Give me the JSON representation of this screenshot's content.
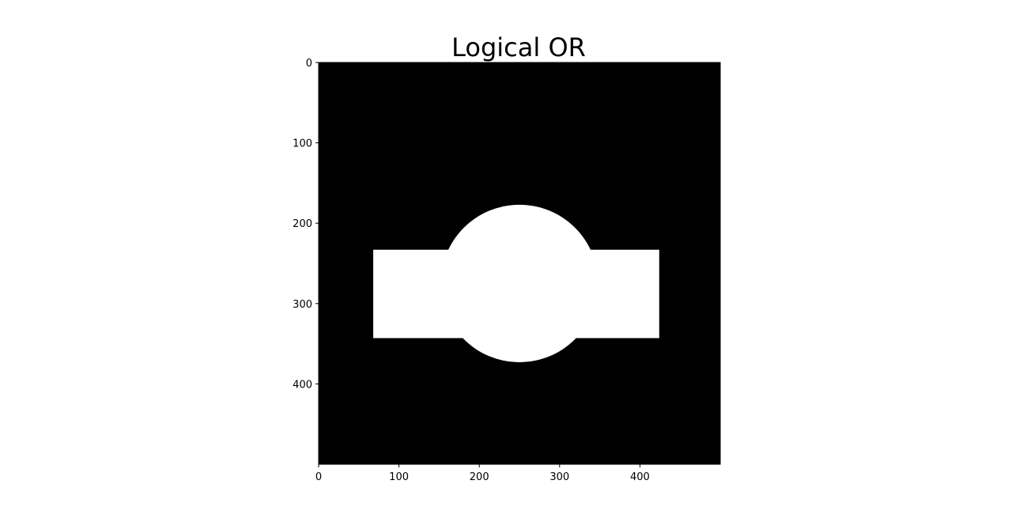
{
  "chart_data": {
    "type": "heatmap",
    "title": "Logical OR",
    "xlabel": "",
    "ylabel": "",
    "image_shape": [
      500,
      500
    ],
    "xlim": [
      0,
      500
    ],
    "ylim": [
      500,
      0
    ],
    "xticks": [
      0,
      100,
      200,
      300,
      400
    ],
    "yticks": [
      0,
      100,
      200,
      300,
      400
    ],
    "colormap": "gray",
    "background_value": 0,
    "foreground_value": 1,
    "colors": {
      "background": "#000000",
      "foreground": "#ffffff"
    },
    "shapes": [
      {
        "name": "rectangle",
        "x_range": [
          68,
          424
        ],
        "y_range": [
          233,
          343
        ]
      },
      {
        "name": "circle",
        "center": [
          250,
          275
        ],
        "radius": 98
      }
    ]
  }
}
